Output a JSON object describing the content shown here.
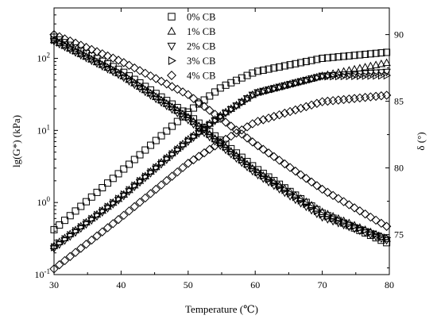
{
  "chart_data": {
    "type": "scatter",
    "title": "",
    "xlabel": "Temperature (℃)",
    "ylabel_left": "lg(G*) (kPa)",
    "ylabel_right": "δ (°)",
    "xlim": [
      30,
      80
    ],
    "ylim_left": [
      0.1,
      500
    ],
    "y_scale_left": "log",
    "ylim_right": [
      72,
      92
    ],
    "x_ticks": [
      "30",
      "40",
      "50",
      "60",
      "70",
      "80"
    ],
    "y_ticks_left": [
      {
        "base": "10",
        "exp": "-1",
        "value": 0.1
      },
      {
        "base": "10",
        "exp": "0",
        "value": 1
      },
      {
        "base": "10",
        "exp": "1",
        "value": 10
      },
      {
        "base": "10",
        "exp": "2",
        "value": 100
      }
    ],
    "y_ticks_right": [
      "75",
      "80",
      "85",
      "90"
    ],
    "legend_position": "top-center",
    "grid": false,
    "series": [
      {
        "name": "0% CB",
        "marker": "square",
        "G_points": [
          [
            30,
            0.42
          ],
          [
            40,
            2.7
          ],
          [
            50,
            18
          ],
          [
            55,
            40
          ],
          [
            60,
            65
          ],
          [
            70,
            100
          ],
          [
            80,
            122
          ]
        ],
        "delta_points": [
          [
            30,
            89.8
          ],
          [
            40,
            87.3
          ],
          [
            50,
            84.0
          ],
          [
            60,
            80.0
          ],
          [
            70,
            76.6
          ],
          [
            80,
            74.3
          ]
        ]
      },
      {
        "name": "1% CB",
        "marker": "triangle-up",
        "G_points": [
          [
            30,
            0.25
          ],
          [
            40,
            1.2
          ],
          [
            50,
            7.5
          ],
          [
            55,
            16.5
          ],
          [
            60,
            33
          ],
          [
            70,
            57
          ],
          [
            80,
            88
          ]
        ],
        "delta_points": [
          [
            30,
            89.6
          ],
          [
            40,
            87.0
          ],
          [
            50,
            83.8
          ],
          [
            60,
            79.8
          ],
          [
            70,
            76.7
          ],
          [
            80,
            74.6
          ]
        ]
      },
      {
        "name": "2% CB",
        "marker": "triangle-down",
        "G_points": [
          [
            30,
            0.23
          ],
          [
            40,
            1.15
          ],
          [
            50,
            7
          ],
          [
            55,
            16
          ],
          [
            60,
            33
          ],
          [
            70,
            57
          ],
          [
            80,
            65
          ]
        ],
        "delta_points": [
          [
            30,
            89.5
          ],
          [
            40,
            86.9
          ],
          [
            50,
            83.6
          ],
          [
            60,
            79.6
          ],
          [
            70,
            76.3
          ],
          [
            80,
            74.5
          ]
        ]
      },
      {
        "name": "3% CB",
        "marker": "triangle-right",
        "G_points": [
          [
            30,
            0.24
          ],
          [
            40,
            1.2
          ],
          [
            50,
            7.2
          ],
          [
            55,
            16
          ],
          [
            60,
            32
          ],
          [
            70,
            56
          ],
          [
            80,
            58
          ]
        ],
        "delta_points": [
          [
            30,
            89.6
          ],
          [
            40,
            87.1
          ],
          [
            50,
            83.8
          ],
          [
            60,
            79.8
          ],
          [
            70,
            76.5
          ],
          [
            80,
            74.7
          ]
        ]
      },
      {
        "name": "4% CB",
        "marker": "diamond",
        "G_points": [
          [
            30,
            0.12
          ],
          [
            40,
            0.62
          ],
          [
            50,
            3.5
          ],
          [
            55,
            7
          ],
          [
            60,
            13
          ],
          [
            70,
            25
          ],
          [
            80,
            31
          ]
        ],
        "delta_points": [
          [
            30,
            90.0
          ],
          [
            40,
            88.0
          ],
          [
            50,
            85.5
          ],
          [
            60,
            81.8
          ],
          [
            70,
            78.4
          ],
          [
            80,
            75.5
          ]
        ]
      }
    ]
  }
}
